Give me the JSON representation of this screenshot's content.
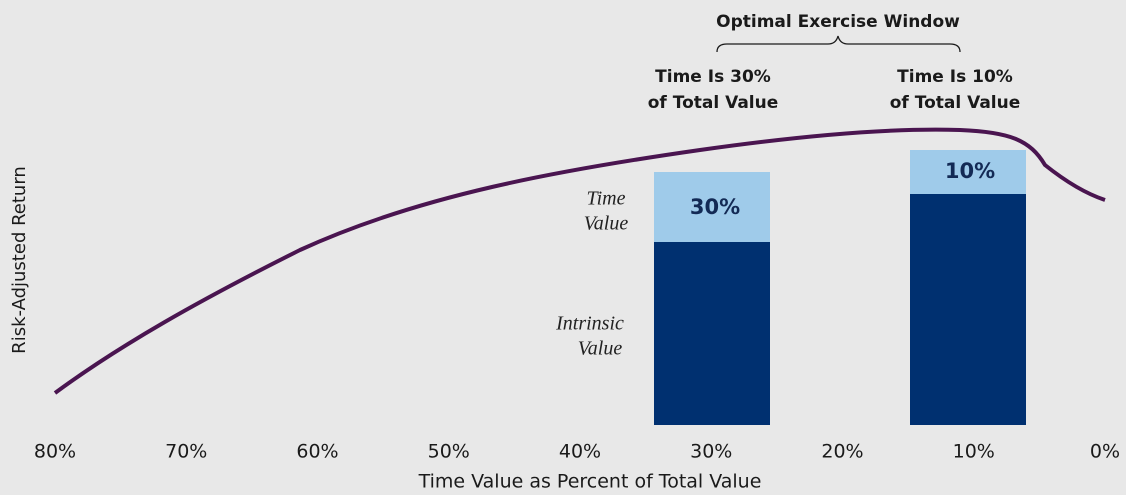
{
  "header": {
    "title": "Optimal Exercise Window"
  },
  "callouts": [
    {
      "lines": [
        "Time Is 30%",
        "of Total Value"
      ]
    },
    {
      "lines": [
        "Time Is 10%",
        "of Total Value"
      ]
    }
  ],
  "bar_legend": {
    "time": [
      "Time",
      "Value"
    ],
    "intrinsic": [
      "Intrinsic",
      "Value"
    ]
  },
  "bar_labels": [
    "30%",
    "10%"
  ],
  "axes": {
    "x_label": "Time Value as Percent of Total Value",
    "y_label": "Risk-Adjusted Return",
    "x_ticks": [
      "80%",
      "70%",
      "60%",
      "50%",
      "40%",
      "30%",
      "20%",
      "10%",
      "0%"
    ]
  }
}
